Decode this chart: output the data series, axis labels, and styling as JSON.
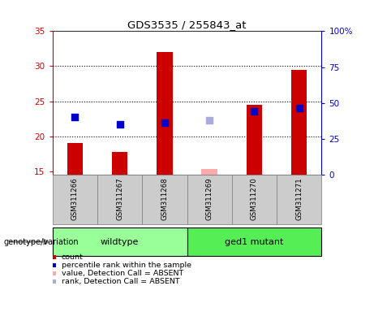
{
  "title": "GDS3535 / 255843_at",
  "samples": [
    "GSM311266",
    "GSM311267",
    "GSM311268",
    "GSM311269",
    "GSM311270",
    "GSM311271"
  ],
  "ylim_left": [
    14.5,
    35
  ],
  "ylim_right": [
    0,
    100
  ],
  "yticks_left": [
    15,
    20,
    25,
    30,
    35
  ],
  "yticks_right": [
    0,
    25,
    50,
    75,
    100
  ],
  "ytick_labels_right": [
    "0",
    "25",
    "50",
    "75",
    "100%"
  ],
  "bar_values": [
    19.0,
    17.8,
    32.0,
    null,
    24.5,
    29.5
  ],
  "bar_values_absent": [
    null,
    null,
    null,
    15.3,
    null,
    null
  ],
  "dot_values": [
    22.7,
    21.7,
    21.9,
    null,
    23.5,
    24.0
  ],
  "dot_values_absent": [
    null,
    null,
    null,
    22.3,
    null,
    null
  ],
  "bar_color": "#cc0000",
  "bar_color_absent": "#ffaaaa",
  "dot_color": "#0000cc",
  "dot_color_absent": "#aaaadd",
  "bar_bottom": 14.5,
  "bar_width": 0.35,
  "dot_size": 40,
  "bg_color": "#ffffff",
  "plot_bg": "#ffffff",
  "left_axis_color": "#cc0000",
  "right_axis_color": "#0000cc",
  "grid_dotted_lines": [
    20,
    25,
    30
  ],
  "group_defs": [
    {
      "label": "wildtype",
      "indices": [
        0,
        1,
        2
      ],
      "color": "#99ff99"
    },
    {
      "label": "ged1 mutant",
      "indices": [
        3,
        4,
        5
      ],
      "color": "#55ee55"
    }
  ],
  "genotype_label": "genotype/variation",
  "legend_items": [
    {
      "label": "count",
      "color": "#cc0000"
    },
    {
      "label": "percentile rank within the sample",
      "color": "#0000cc"
    },
    {
      "label": "value, Detection Call = ABSENT",
      "color": "#ffaaaa"
    },
    {
      "label": "rank, Detection Call = ABSENT",
      "color": "#aaaadd"
    }
  ],
  "label_box_color": "#cccccc",
  "label_box_edge": "#888888",
  "spine_color": "#333333"
}
